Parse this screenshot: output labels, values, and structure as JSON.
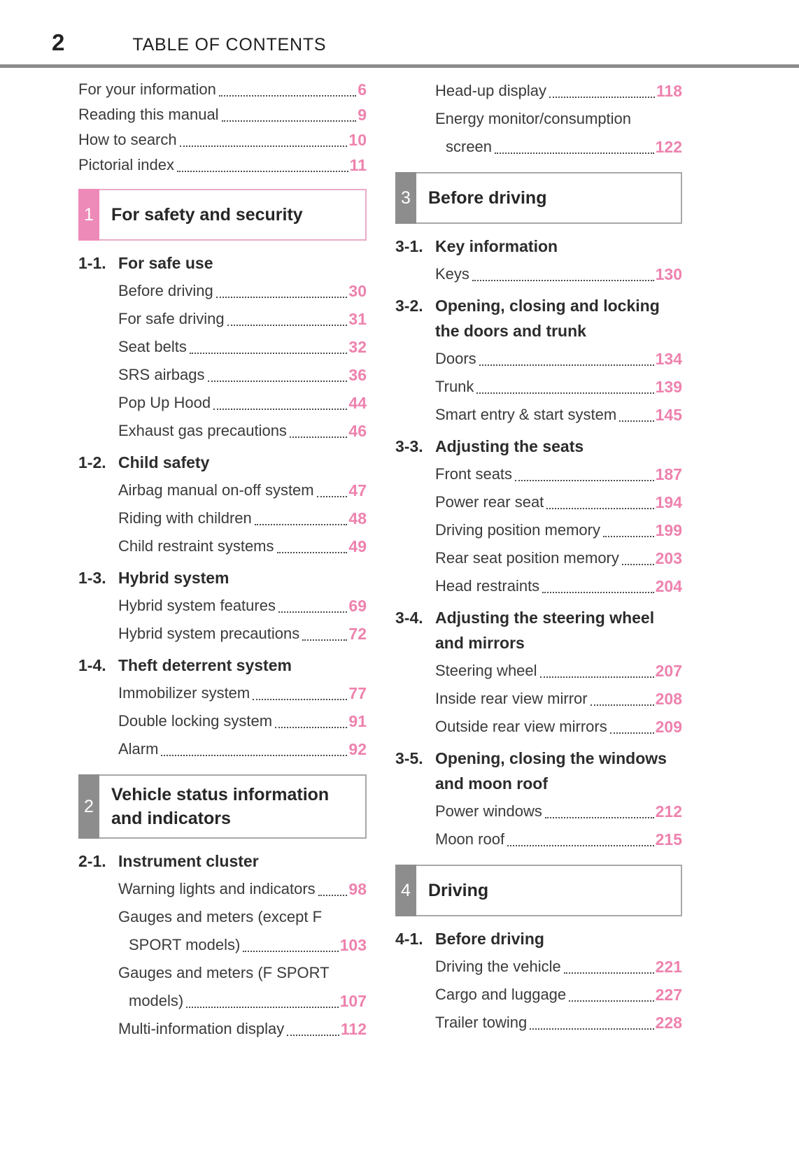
{
  "header": {
    "page_number": "2",
    "title": "TABLE OF CONTENTS"
  },
  "colors": {
    "page_number_pink": "#ee82ae",
    "chapter_tab_pink": "#ee8ab8",
    "chapter_border_pink": "#eaaac8",
    "chapter_tab_gray": "#8d8d8d",
    "chapter_border_gray": "#a8a8a8",
    "header_rule_gray": "#8c8c8c",
    "body_text": "#3a3a3a"
  },
  "columns": {
    "left": {
      "blocks": [
        {
          "type": "list",
          "flush": true,
          "entries": [
            {
              "label": "For your information",
              "page": "6"
            },
            {
              "label": "Reading this manual",
              "page": "9"
            },
            {
              "label": "How to search",
              "page": "10"
            },
            {
              "label": "Pictorial index",
              "page": "11"
            }
          ]
        },
        {
          "type": "chapter",
          "num": "1",
          "title": "For safety and security",
          "accent": "pink"
        },
        {
          "type": "group",
          "num": "1-1.",
          "title": "For safe use",
          "entries": [
            {
              "label": "Before driving",
              "page": "30"
            },
            {
              "label": "For safe driving",
              "page": "31"
            },
            {
              "label": "Seat belts",
              "page": "32"
            },
            {
              "label": "SRS airbags",
              "page": "36"
            },
            {
              "label": "Pop Up Hood",
              "page": "44"
            },
            {
              "label": "Exhaust gas precautions",
              "page": "46"
            }
          ]
        },
        {
          "type": "group",
          "num": "1-2.",
          "title": "Child safety",
          "entries": [
            {
              "label": "Airbag manual on-off system",
              "page": "47"
            },
            {
              "label": "Riding with children",
              "page": "48"
            },
            {
              "label": "Child restraint systems",
              "page": "49"
            }
          ]
        },
        {
          "type": "group",
          "num": "1-3.",
          "title": "Hybrid system",
          "entries": [
            {
              "label": "Hybrid system features",
              "page": "69"
            },
            {
              "label": "Hybrid system precautions",
              "page": "72"
            }
          ]
        },
        {
          "type": "group",
          "num": "1-4.",
          "title": "Theft deterrent system",
          "entries": [
            {
              "label": "Immobilizer system",
              "page": "77"
            },
            {
              "label": "Double locking system",
              "page": "91"
            },
            {
              "label": "Alarm",
              "page": "92"
            }
          ]
        },
        {
          "type": "chapter",
          "num": "2",
          "title": "Vehicle status information and indicators",
          "accent": "gray"
        },
        {
          "type": "group",
          "num": "2-1.",
          "title": "Instrument cluster",
          "entries": [
            {
              "label": "Warning lights and indicators",
              "page": "98"
            },
            {
              "label": "Gauges and meters (except F",
              "label2": "SPORT models)",
              "page": "103"
            },
            {
              "label": "Gauges and meters (F SPORT",
              "label2": "models)",
              "page": "107"
            },
            {
              "label": "Multi-information display",
              "page": "112"
            }
          ]
        }
      ]
    },
    "right": {
      "blocks": [
        {
          "type": "group",
          "entries": [
            {
              "label": "Head-up display",
              "page": "118"
            },
            {
              "label": "Energy monitor/consumption",
              "label2": "screen",
              "page": "122"
            }
          ]
        },
        {
          "type": "chapter",
          "num": "3",
          "title": "Before driving",
          "accent": "gray"
        },
        {
          "type": "group",
          "num": "3-1.",
          "title": "Key information",
          "entries": [
            {
              "label": "Keys",
              "page": "130"
            }
          ]
        },
        {
          "type": "group",
          "num": "3-2.",
          "title": "Opening, closing and locking the doors and trunk",
          "entries": [
            {
              "label": "Doors",
              "page": "134"
            },
            {
              "label": "Trunk",
              "page": "139"
            },
            {
              "label": "Smart entry & start system",
              "page": "145"
            }
          ]
        },
        {
          "type": "group",
          "num": "3-3.",
          "title": "Adjusting the seats",
          "entries": [
            {
              "label": "Front seats",
              "page": "187"
            },
            {
              "label": "Power rear seat",
              "page": "194"
            },
            {
              "label": "Driving position memory",
              "page": "199"
            },
            {
              "label": "Rear seat position memory",
              "page": "203"
            },
            {
              "label": "Head restraints",
              "page": "204"
            }
          ]
        },
        {
          "type": "group",
          "num": "3-4.",
          "title": "Adjusting the steering wheel and mirrors",
          "entries": [
            {
              "label": "Steering wheel",
              "page": "207"
            },
            {
              "label": "Inside rear view mirror",
              "page": "208"
            },
            {
              "label": "Outside rear view mirrors",
              "page": "209"
            }
          ]
        },
        {
          "type": "group",
          "num": "3-5.",
          "title": "Opening, closing the windows and moon roof",
          "entries": [
            {
              "label": "Power windows",
              "page": "212"
            },
            {
              "label": "Moon roof",
              "page": "215"
            }
          ]
        },
        {
          "type": "chapter",
          "num": "4",
          "title": "Driving",
          "accent": "gray"
        },
        {
          "type": "group",
          "num": "4-1.",
          "title": "Before driving",
          "entries": [
            {
              "label": "Driving the vehicle",
              "page": "221"
            },
            {
              "label": "Cargo and luggage",
              "page": "227"
            },
            {
              "label": "Trailer towing",
              "page": "228"
            }
          ]
        }
      ]
    }
  }
}
